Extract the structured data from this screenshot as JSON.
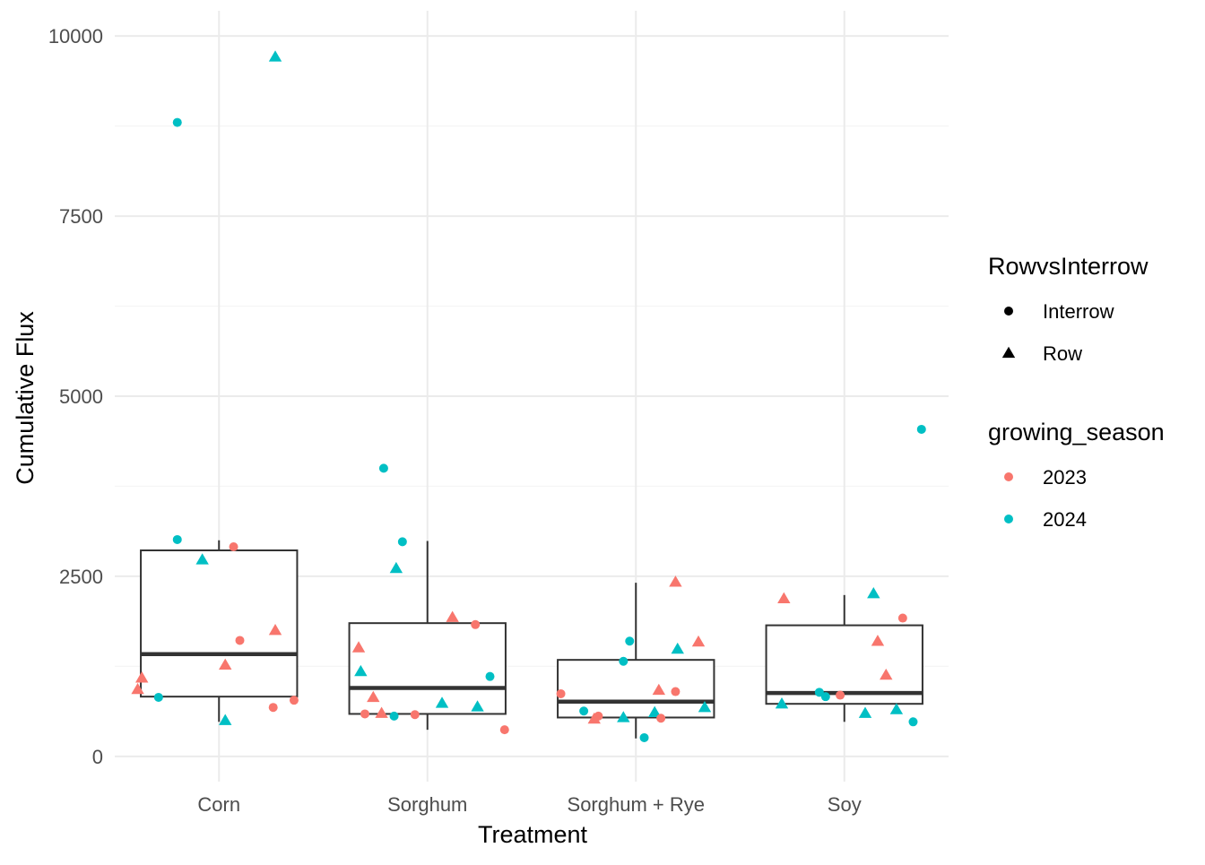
{
  "chart_data": {
    "type": "boxplot",
    "xlabel": "Treatment",
    "ylabel": "Cumulative Flux",
    "categories": [
      "Corn",
      "Sorghum",
      "Sorghum + Rye",
      "Soy"
    ],
    "ylim": [
      -350,
      10350
    ],
    "y_ticks": [
      0,
      2500,
      5000,
      7500,
      10000
    ],
    "y_minor_ticks": [
      1250,
      3750,
      6250,
      8750
    ],
    "grid": true,
    "legend_position": "right",
    "boxes": [
      {
        "category": "Corn",
        "whisker_low": 480,
        "q1": 830,
        "median": 1420,
        "q3": 2860,
        "whisker_high": 3000
      },
      {
        "category": "Sorghum",
        "whisker_low": 370,
        "q1": 590,
        "median": 950,
        "q3": 1850,
        "whisker_high": 2990
      },
      {
        "category": "Sorghum + Rye",
        "whisker_low": 250,
        "q1": 540,
        "median": 760,
        "q3": 1340,
        "whisker_high": 2410
      },
      {
        "category": "Soy",
        "whisker_low": 480,
        "q1": 730,
        "median": 880,
        "q3": 1820,
        "whisker_high": 2240
      }
    ],
    "points": [
      {
        "category": "Corn",
        "offset": -0.39,
        "y": 930,
        "shape": "Row",
        "season": "2023"
      },
      {
        "category": "Corn",
        "offset": -0.37,
        "y": 1090,
        "shape": "Row",
        "season": "2023"
      },
      {
        "category": "Corn",
        "offset": -0.29,
        "y": 820,
        "shape": "Interrow",
        "season": "2024"
      },
      {
        "category": "Corn",
        "offset": -0.2,
        "y": 8800,
        "shape": "Interrow",
        "season": "2024"
      },
      {
        "category": "Corn",
        "offset": -0.2,
        "y": 3010,
        "shape": "Interrow",
        "season": "2024"
      },
      {
        "category": "Corn",
        "offset": -0.08,
        "y": 2730,
        "shape": "Row",
        "season": "2024"
      },
      {
        "category": "Corn",
        "offset": 0.03,
        "y": 500,
        "shape": "Row",
        "season": "2024"
      },
      {
        "category": "Corn",
        "offset": 0.03,
        "y": 1270,
        "shape": "Row",
        "season": "2023"
      },
      {
        "category": "Corn",
        "offset": 0.07,
        "y": 2910,
        "shape": "Interrow",
        "season": "2023"
      },
      {
        "category": "Corn",
        "offset": 0.1,
        "y": 1610,
        "shape": "Interrow",
        "season": "2023"
      },
      {
        "category": "Corn",
        "offset": 0.26,
        "y": 680,
        "shape": "Interrow",
        "season": "2023"
      },
      {
        "category": "Corn",
        "offset": 0.27,
        "y": 1750,
        "shape": "Row",
        "season": "2023"
      },
      {
        "category": "Corn",
        "offset": 0.27,
        "y": 9710,
        "shape": "Row",
        "season": "2024"
      },
      {
        "category": "Corn",
        "offset": 0.36,
        "y": 780,
        "shape": "Interrow",
        "season": "2023"
      },
      {
        "category": "Sorghum",
        "offset": -0.33,
        "y": 1510,
        "shape": "Row",
        "season": "2023"
      },
      {
        "category": "Sorghum",
        "offset": -0.32,
        "y": 1180,
        "shape": "Row",
        "season": "2024"
      },
      {
        "category": "Sorghum",
        "offset": -0.3,
        "y": 590,
        "shape": "Interrow",
        "season": "2023"
      },
      {
        "category": "Sorghum",
        "offset": -0.26,
        "y": 820,
        "shape": "Row",
        "season": "2023"
      },
      {
        "category": "Sorghum",
        "offset": -0.22,
        "y": 600,
        "shape": "Row",
        "season": "2023"
      },
      {
        "category": "Sorghum",
        "offset": -0.21,
        "y": 4000,
        "shape": "Interrow",
        "season": "2024"
      },
      {
        "category": "Sorghum",
        "offset": -0.16,
        "y": 560,
        "shape": "Interrow",
        "season": "2024"
      },
      {
        "category": "Sorghum",
        "offset": -0.15,
        "y": 2610,
        "shape": "Row",
        "season": "2024"
      },
      {
        "category": "Sorghum",
        "offset": -0.12,
        "y": 2980,
        "shape": "Interrow",
        "season": "2024"
      },
      {
        "category": "Sorghum",
        "offset": -0.06,
        "y": 580,
        "shape": "Interrow",
        "season": "2023"
      },
      {
        "category": "Sorghum",
        "offset": 0.07,
        "y": 740,
        "shape": "Row",
        "season": "2024"
      },
      {
        "category": "Sorghum",
        "offset": 0.12,
        "y": 1930,
        "shape": "Row",
        "season": "2023"
      },
      {
        "category": "Sorghum",
        "offset": 0.23,
        "y": 1830,
        "shape": "Interrow",
        "season": "2023"
      },
      {
        "category": "Sorghum",
        "offset": 0.24,
        "y": 690,
        "shape": "Row",
        "season": "2024"
      },
      {
        "category": "Sorghum",
        "offset": 0.3,
        "y": 1110,
        "shape": "Interrow",
        "season": "2024"
      },
      {
        "category": "Sorghum",
        "offset": 0.37,
        "y": 370,
        "shape": "Interrow",
        "season": "2023"
      },
      {
        "category": "Sorghum + Rye",
        "offset": -0.36,
        "y": 870,
        "shape": "Interrow",
        "season": "2023"
      },
      {
        "category": "Sorghum + Rye",
        "offset": -0.25,
        "y": 630,
        "shape": "Interrow",
        "season": "2024"
      },
      {
        "category": "Sorghum + Rye",
        "offset": -0.2,
        "y": 520,
        "shape": "Row",
        "season": "2023"
      },
      {
        "category": "Sorghum + Rye",
        "offset": -0.18,
        "y": 560,
        "shape": "Interrow",
        "season": "2023"
      },
      {
        "category": "Sorghum + Rye",
        "offset": -0.06,
        "y": 1320,
        "shape": "Interrow",
        "season": "2024"
      },
      {
        "category": "Sorghum + Rye",
        "offset": -0.06,
        "y": 540,
        "shape": "Row",
        "season": "2024"
      },
      {
        "category": "Sorghum + Rye",
        "offset": -0.03,
        "y": 1600,
        "shape": "Interrow",
        "season": "2024"
      },
      {
        "category": "Sorghum + Rye",
        "offset": 0.04,
        "y": 260,
        "shape": "Interrow",
        "season": "2024"
      },
      {
        "category": "Sorghum + Rye",
        "offset": 0.09,
        "y": 610,
        "shape": "Row",
        "season": "2024"
      },
      {
        "category": "Sorghum + Rye",
        "offset": 0.11,
        "y": 920,
        "shape": "Row",
        "season": "2023"
      },
      {
        "category": "Sorghum + Rye",
        "offset": 0.12,
        "y": 530,
        "shape": "Interrow",
        "season": "2023"
      },
      {
        "category": "Sorghum + Rye",
        "offset": 0.19,
        "y": 900,
        "shape": "Interrow",
        "season": "2023"
      },
      {
        "category": "Sorghum + Rye",
        "offset": 0.19,
        "y": 2420,
        "shape": "Row",
        "season": "2023"
      },
      {
        "category": "Sorghum + Rye",
        "offset": 0.2,
        "y": 1490,
        "shape": "Row",
        "season": "2024"
      },
      {
        "category": "Sorghum + Rye",
        "offset": 0.3,
        "y": 1590,
        "shape": "Row",
        "season": "2023"
      },
      {
        "category": "Sorghum + Rye",
        "offset": 0.33,
        "y": 680,
        "shape": "Row",
        "season": "2024"
      },
      {
        "category": "Soy",
        "offset": -0.3,
        "y": 730,
        "shape": "Row",
        "season": "2024"
      },
      {
        "category": "Soy",
        "offset": -0.29,
        "y": 2190,
        "shape": "Row",
        "season": "2023"
      },
      {
        "category": "Soy",
        "offset": -0.12,
        "y": 890,
        "shape": "Interrow",
        "season": "2024"
      },
      {
        "category": "Soy",
        "offset": -0.09,
        "y": 830,
        "shape": "Interrow",
        "season": "2024"
      },
      {
        "category": "Soy",
        "offset": -0.02,
        "y": 850,
        "shape": "Interrow",
        "season": "2023"
      },
      {
        "category": "Soy",
        "offset": 0.1,
        "y": 600,
        "shape": "Row",
        "season": "2024"
      },
      {
        "category": "Soy",
        "offset": 0.14,
        "y": 2260,
        "shape": "Row",
        "season": "2024"
      },
      {
        "category": "Soy",
        "offset": 0.16,
        "y": 1600,
        "shape": "Row",
        "season": "2023"
      },
      {
        "category": "Soy",
        "offset": 0.2,
        "y": 1130,
        "shape": "Row",
        "season": "2023"
      },
      {
        "category": "Soy",
        "offset": 0.25,
        "y": 650,
        "shape": "Row",
        "season": "2024"
      },
      {
        "category": "Soy",
        "offset": 0.28,
        "y": 1920,
        "shape": "Interrow",
        "season": "2023"
      },
      {
        "category": "Soy",
        "offset": 0.33,
        "y": 480,
        "shape": "Interrow",
        "season": "2024"
      },
      {
        "category": "Soy",
        "offset": 0.37,
        "y": 4540,
        "shape": "Interrow",
        "season": "2024"
      }
    ],
    "legends": [
      {
        "title": "RowvsInterrow",
        "kind": "shape",
        "entries": [
          {
            "label": "Interrow",
            "shape": "Interrow",
            "color": "#000000"
          },
          {
            "label": "Row",
            "shape": "Row",
            "color": "#000000"
          }
        ]
      },
      {
        "title": "growing_season",
        "kind": "color",
        "entries": [
          {
            "label": "2023",
            "shape": "Interrow",
            "color": "#F8766D"
          },
          {
            "label": "2024",
            "shape": "Interrow",
            "color": "#00BFC4"
          }
        ]
      }
    ],
    "colors": {
      "2023": "#F8766D",
      "2024": "#00BFC4",
      "box_line": "#333333",
      "grid_major": "#ebebeb",
      "grid_minor": "#f5f5f5"
    }
  }
}
